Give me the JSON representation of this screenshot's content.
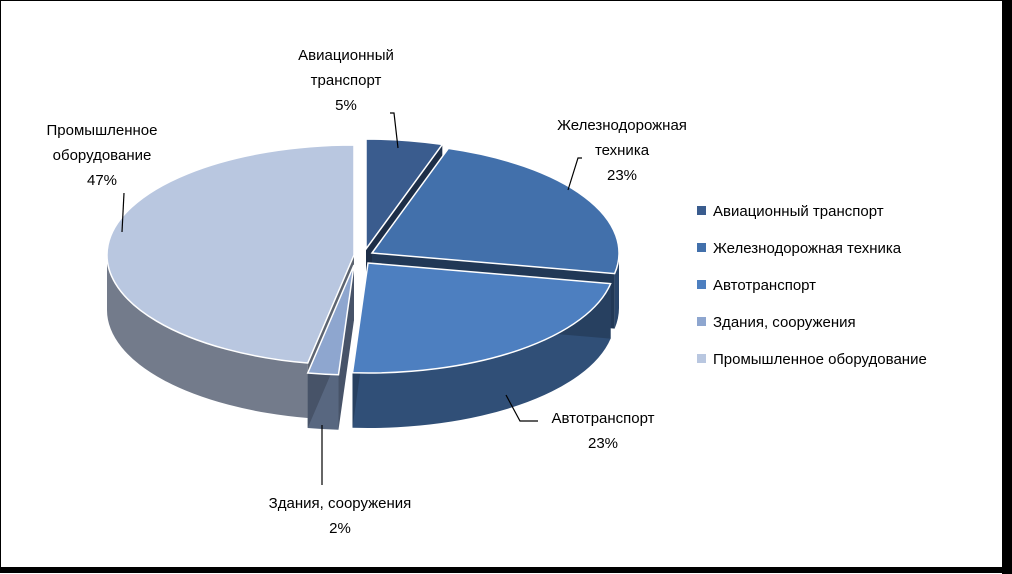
{
  "chart_data": {
    "type": "pie",
    "title": "",
    "legend_position": "right",
    "slices": [
      {
        "name": "Авиационный транспорт",
        "label_lines": [
          "Авиационный",
          "транспорт"
        ],
        "percent_label": "5%",
        "value": 5,
        "color": "#3A5C8E"
      },
      {
        "name": "Железнодорожная техника",
        "label_lines": [
          "Железнодорожная",
          "техника"
        ],
        "percent_label": "23%",
        "value": 23,
        "color": "#4270AB"
      },
      {
        "name": "Автотранспорт",
        "label_lines": [
          "Автотранспорт"
        ],
        "percent_label": "23%",
        "value": 23,
        "color": "#4D7FC0"
      },
      {
        "name": "Здания, сооружения",
        "label_lines": [
          "Здания, сооружения"
        ],
        "percent_label": "2%",
        "value": 2,
        "color": "#8EA6CF"
      },
      {
        "name": "Промышленное оборудование",
        "label_lines": [
          "Промышленное",
          "оборудование"
        ],
        "percent_label": "47%",
        "value": 47,
        "color": "#B9C7E0"
      }
    ]
  }
}
